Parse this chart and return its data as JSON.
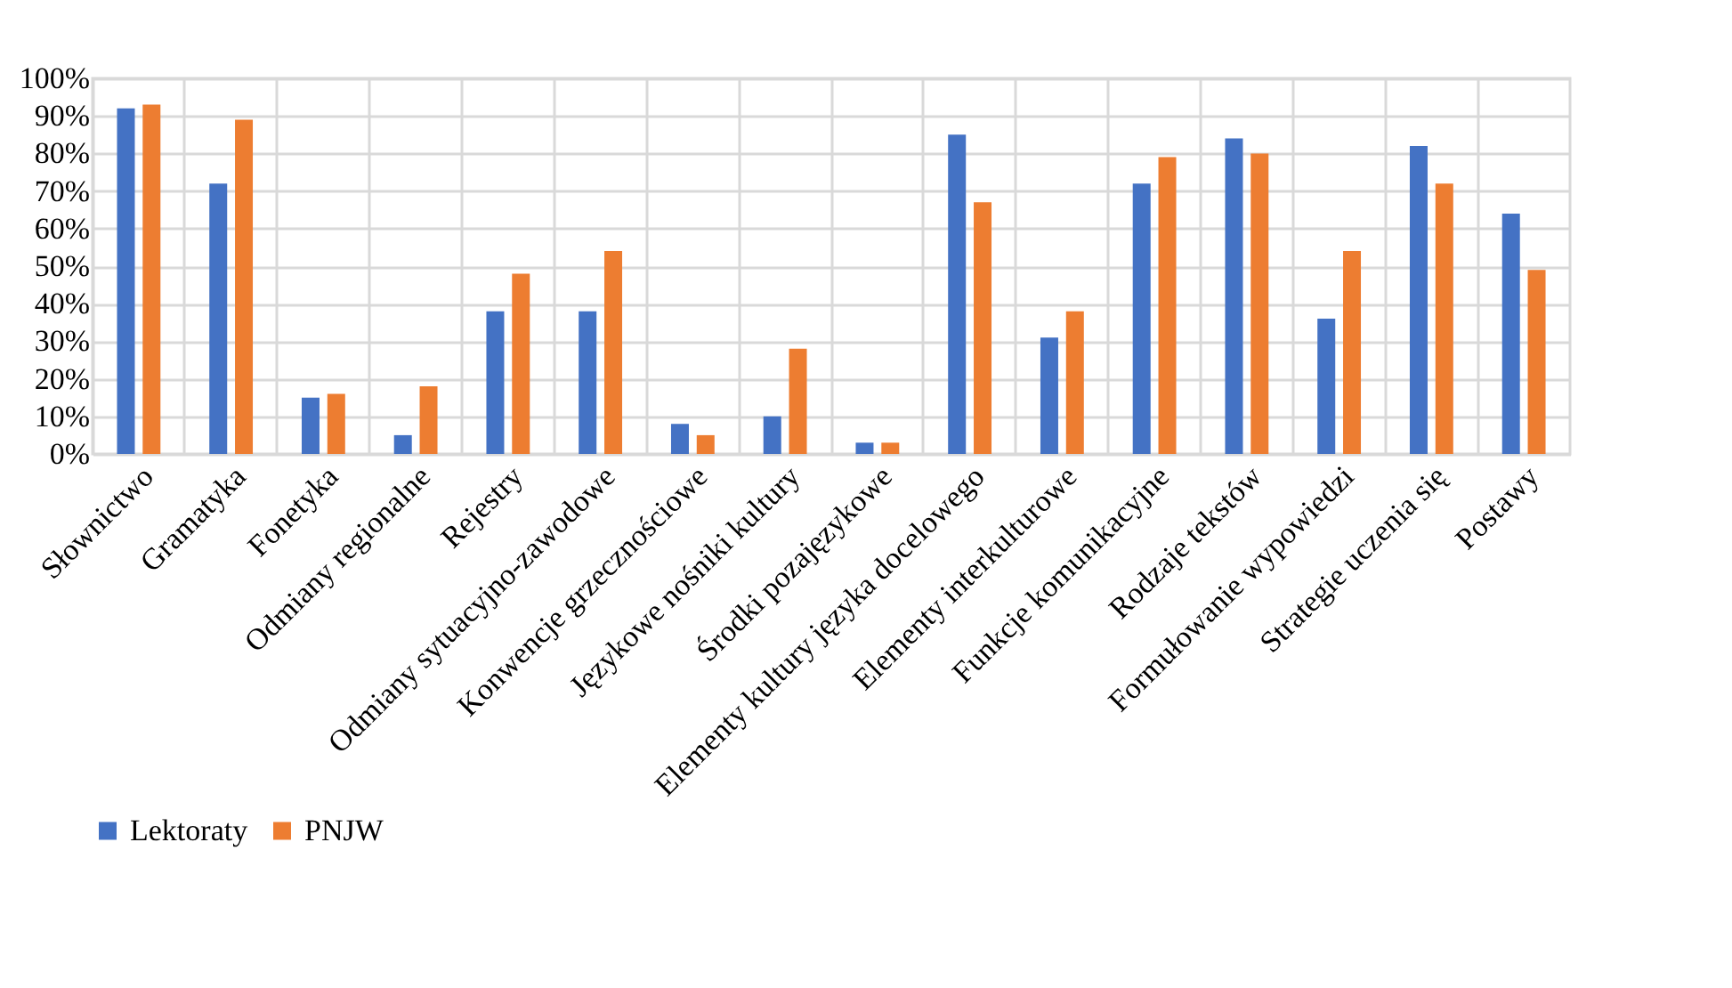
{
  "chart_data": {
    "type": "bar",
    "categories": [
      "Słownictwo",
      "Gramatyka",
      "Fonetyka",
      "Odmiany regionalne",
      "Rejestry",
      "Odmiany sytuacyjno-zawodowe",
      "Konwencje grzecznościowe",
      "Językowe nośniki kultury",
      "Środki pozajęzykowe",
      "Elementy kultury języka docelowego",
      "Elementy interkulturowe",
      "Funkcje komunikacyjne",
      "Rodzaje tekstów",
      "Formułowanie wypowiedzi",
      "Strategie uczenia się",
      "Postawy"
    ],
    "series": [
      {
        "name": "Lektoraty",
        "color": "#4472c4",
        "values": [
          92,
          72,
          15,
          5,
          38,
          38,
          8,
          10,
          3,
          85,
          31,
          72,
          84,
          36,
          82,
          64
        ]
      },
      {
        "name": "PNJW",
        "color": "#ed7d31",
        "values": [
          93,
          89,
          16,
          18,
          48,
          54,
          5,
          28,
          3,
          67,
          38,
          79,
          80,
          54,
          72,
          49
        ]
      }
    ],
    "ylim": [
      0,
      100
    ],
    "yticks": [
      {
        "value": 0,
        "label": "0%"
      },
      {
        "value": 10,
        "label": "10%"
      },
      {
        "value": 20,
        "label": "20%"
      },
      {
        "value": 30,
        "label": "30%"
      },
      {
        "value": 40,
        "label": "40%"
      },
      {
        "value": 50,
        "label": "50%"
      },
      {
        "value": 60,
        "label": "60%"
      },
      {
        "value": 70,
        "label": "70%"
      },
      {
        "value": 80,
        "label": "80%"
      },
      {
        "value": 90,
        "label": "90%"
      },
      {
        "value": 100,
        "label": "100%"
      }
    ],
    "grid": true,
    "legend": "bottom"
  }
}
